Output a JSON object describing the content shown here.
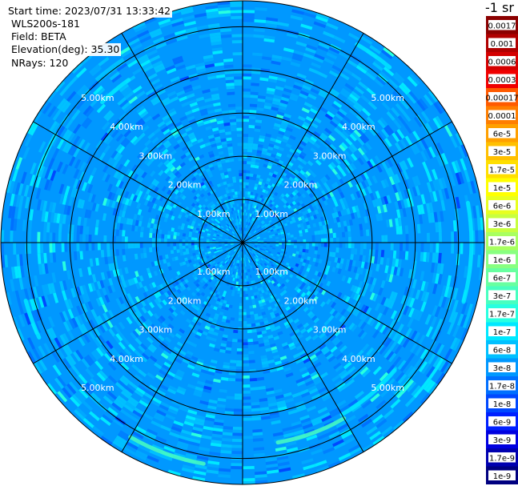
{
  "header": {
    "start_time": "Start time: 2023/07/31 13:33:42",
    "device": "WLS200s-181",
    "field": "Field: BETA",
    "elevation": "Elevation(deg): 35.30",
    "nrays": "NRays: 120"
  },
  "colorbar": {
    "unit_label": "-1 sr",
    "labels": [
      "0.0017",
      "0.001",
      "0.0006",
      "0.0003",
      "0.00017",
      "0.0001",
      "6e-5",
      "3e-5",
      "1.7e-5",
      "1e-5",
      "6e-6",
      "3e-6",
      "1.7e-6",
      "1e-6",
      "6e-7",
      "3e-7",
      "1.7e-7",
      "1e-7",
      "6e-8",
      "3e-8",
      "1.7e-8",
      "1e-8",
      "6e-9",
      "3e-9",
      "1.7e-9",
      "1e-9"
    ],
    "colors": [
      "#8b0000",
      "#b00000",
      "#d40000",
      "#f00000",
      "#ff5a00",
      "#ff7e00",
      "#ffa000",
      "#ffc000",
      "#ffdf00",
      "#ffff00",
      "#e8ff20",
      "#c8ff40",
      "#a8ff60",
      "#88ff80",
      "#68ffa0",
      "#48ffc0",
      "#28ffe0",
      "#00e8ff",
      "#00c0ff",
      "#0098ff",
      "#0070ff",
      "#0048ff",
      "#0020ff",
      "#0000e0",
      "#0000b0",
      "#000080"
    ]
  },
  "chart_data": {
    "type": "polar_ppi",
    "field": "BETA",
    "nrays": 120,
    "range_rings_km": [
      1,
      2,
      3,
      4,
      5
    ],
    "ring_labels": [
      "1.00km",
      "2.00km",
      "3.00km",
      "4.00km",
      "5.00km"
    ],
    "max_range_km": 5.6,
    "spoke_angles_deg": [
      0,
      30,
      60,
      90,
      120,
      150,
      180,
      210,
      240,
      270,
      300,
      330
    ],
    "background_level": "3e-8",
    "enhanced_arcs": [
      {
        "range_km": 5.2,
        "azimuth_from_deg": 190,
        "azimuth_to_deg": 210,
        "level": "3e-7"
      },
      {
        "range_km": 4.7,
        "azimuth_from_deg": 150,
        "azimuth_to_deg": 170,
        "level": "3e-7"
      },
      {
        "range_km": 5.3,
        "azimuth_from_deg": 80,
        "azimuth_to_deg": 105,
        "level": "1e-7"
      },
      {
        "range_km": 5.0,
        "azimuth_from_deg": 290,
        "azimuth_to_deg": 300,
        "level": "1e-7"
      },
      {
        "range_km": 5.2,
        "azimuth_from_deg": 245,
        "azimuth_to_deg": 255,
        "level": "1e-7"
      },
      {
        "range_km": 5.3,
        "azimuth_from_deg": 30,
        "azimuth_to_deg": 40,
        "level": "1e-7"
      },
      {
        "range_km": 4.6,
        "azimuth_from_deg": 130,
        "azimuth_to_deg": 150,
        "level": "1e-7"
      },
      {
        "range_km": 4.6,
        "azimuth_from_deg": 315,
        "azimuth_to_deg": 325,
        "level": "1e-7"
      }
    ]
  }
}
